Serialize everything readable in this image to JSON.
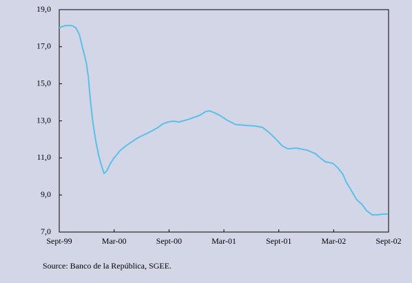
{
  "chart_data": {
    "type": "line",
    "x": [
      0,
      0.7,
      1.36,
      1.8,
      2.2,
      2.56,
      2.94,
      3.17,
      3.4,
      3.7,
      4.0,
      4.3,
      4.6,
      4.9,
      5.2,
      5.57,
      5.95,
      6.7,
      7.46,
      8.6,
      9.7,
      10.7,
      11.3,
      11.9,
      12.5,
      13.1,
      14.2,
      15.4,
      16.0,
      16.4,
      17.0,
      17.6,
      18.4,
      19.3,
      20.3,
      21.4,
      22.2,
      22.9,
      23.7,
      24.4,
      25.0,
      25.9,
      27.1,
      28.0,
      28.6,
      29.1,
      29.9,
      30.4,
      31.0,
      31.4,
      31.9,
      32.5,
      33.1,
      33.6,
      34.2,
      34.8,
      35.4,
      35.9
    ],
    "series": [
      {
        "color": "#5bbfe8",
        "values": [
          18.03,
          18.14,
          18.14,
          18.03,
          17.66,
          16.92,
          16.18,
          15.43,
          14.13,
          12.83,
          11.9,
          11.16,
          10.6,
          10.16,
          10.3,
          10.68,
          10.97,
          11.42,
          11.71,
          12.09,
          12.35,
          12.61,
          12.83,
          12.94,
          12.98,
          12.94,
          13.09,
          13.31,
          13.5,
          13.54,
          13.43,
          13.28,
          13.02,
          12.8,
          12.76,
          12.72,
          12.65,
          12.39,
          12.01,
          11.64,
          11.49,
          11.53,
          11.42,
          11.23,
          10.97,
          10.79,
          10.71,
          10.49,
          10.12,
          9.67,
          9.27,
          8.75,
          8.49,
          8.15,
          7.93,
          7.93,
          7.97,
          7.97
        ]
      }
    ],
    "xlim": [
      0,
      36
    ],
    "xticks": [
      {
        "value": 0,
        "label": "Sept-99"
      },
      {
        "value": 6,
        "label": "Mar-00"
      },
      {
        "value": 12,
        "label": "Sept-00"
      },
      {
        "value": 18,
        "label": "Mar-01"
      },
      {
        "value": 24,
        "label": "Sept-01"
      },
      {
        "value": 30,
        "label": "Mar-02"
      },
      {
        "value": 36,
        "label": "Sept-02"
      }
    ],
    "ylim": [
      7,
      19
    ],
    "yticks": [
      {
        "value": 7,
        "label": "7,0"
      },
      {
        "value": 9,
        "label": "9,0"
      },
      {
        "value": 11,
        "label": "11,0"
      },
      {
        "value": 13,
        "label": "13,0"
      },
      {
        "value": 15,
        "label": "15,0"
      },
      {
        "value": 17,
        "label": "17,0"
      },
      {
        "value": 19,
        "label": "19,0"
      }
    ],
    "source": "Source: Banco de la República, SGEE."
  }
}
